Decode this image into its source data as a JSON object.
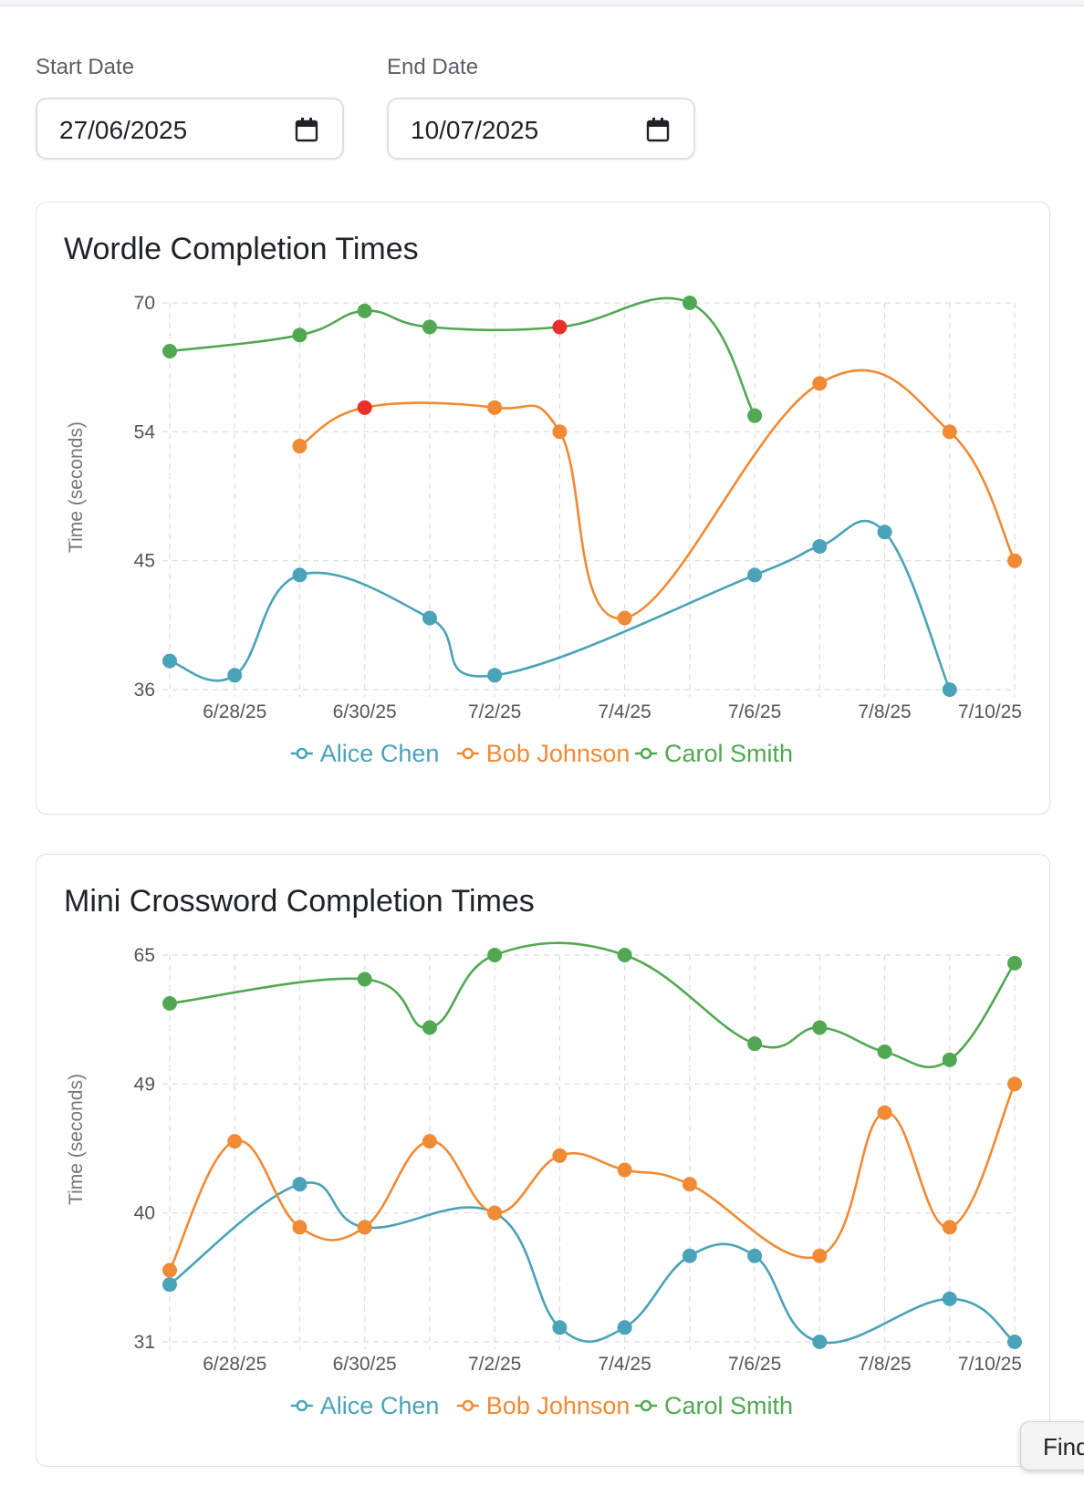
{
  "filters": {
    "start_label": "Start Date",
    "start_value": "27/06/2025",
    "end_label": "End Date",
    "end_value": "10/07/2025",
    "icon": "calendar-icon"
  },
  "find_button": {
    "label": "Find",
    "icon": "none"
  },
  "colors": {
    "alice": "#4aa3b8",
    "bob": "#f08a34",
    "carol": "#52a852",
    "highlight": "#e8302a",
    "grid": "#dcdcdc",
    "axis_text": "#555555"
  },
  "chart_data": [
    {
      "type": "line",
      "title": "Wordle Completion Times",
      "xlabel": "",
      "ylabel": "Time (seconds)",
      "x": [
        "6/27/25",
        "6/28/25",
        "6/29/25",
        "6/30/25",
        "7/1/25",
        "7/2/25",
        "7/3/25",
        "7/4/25",
        "7/5/25",
        "7/6/25",
        "7/7/25",
        "7/8/25",
        "7/9/25",
        "7/10/25"
      ],
      "x_tick_labels": [
        "6/28/25",
        "6/30/25",
        "7/2/25",
        "7/4/25",
        "7/6/25",
        "7/8/25",
        "7/10/25"
      ],
      "y_ticks": [
        36,
        45,
        54,
        70
      ],
      "ylim": [
        36,
        70
      ],
      "grid": true,
      "legend_position": "bottom",
      "series": [
        {
          "name": "Alice Chen",
          "color_key": "alice",
          "values": [
            38,
            37,
            44,
            null,
            41,
            37,
            null,
            null,
            null,
            44,
            46,
            47,
            36,
            null
          ]
        },
        {
          "name": "Bob Johnson",
          "color_key": "bob",
          "values": [
            null,
            null,
            53,
            57,
            null,
            57,
            54,
            41,
            null,
            null,
            60,
            null,
            54,
            45
          ],
          "highlight_index": 3
        },
        {
          "name": "Carol Smith",
          "color_key": "carol",
          "values": [
            64,
            null,
            66,
            69,
            67,
            null,
            67,
            null,
            70,
            56,
            null,
            null,
            null,
            null
          ],
          "highlight_index": 6
        }
      ]
    },
    {
      "type": "line",
      "title": "Mini Crossword Completion Times",
      "xlabel": "",
      "ylabel": "Time (seconds)",
      "x": [
        "6/27/25",
        "6/28/25",
        "6/29/25",
        "6/30/25",
        "7/1/25",
        "7/2/25",
        "7/3/25",
        "7/4/25",
        "7/5/25",
        "7/6/25",
        "7/7/25",
        "7/8/25",
        "7/9/25",
        "7/10/25"
      ],
      "x_tick_labels": [
        "6/28/25",
        "6/30/25",
        "7/2/25",
        "7/4/25",
        "7/6/25",
        "7/8/25",
        "7/10/25"
      ],
      "y_ticks": [
        31,
        40,
        49,
        65
      ],
      "ylim": [
        31,
        65
      ],
      "grid": true,
      "legend_position": "bottom",
      "series": [
        {
          "name": "Alice Chen",
          "color_key": "alice",
          "values": [
            35,
            null,
            42,
            39,
            null,
            40,
            32,
            32,
            37,
            37,
            31,
            null,
            34,
            31
          ]
        },
        {
          "name": "Bob Johnson",
          "color_key": "bob",
          "values": [
            36,
            45,
            39,
            39,
            45,
            40,
            44,
            43,
            42,
            null,
            37,
            47,
            39,
            49
          ]
        },
        {
          "name": "Carol Smith",
          "color_key": "carol",
          "values": [
            59,
            null,
            null,
            62,
            56,
            65,
            null,
            65,
            null,
            54,
            56,
            53,
            52,
            64
          ]
        }
      ]
    }
  ]
}
